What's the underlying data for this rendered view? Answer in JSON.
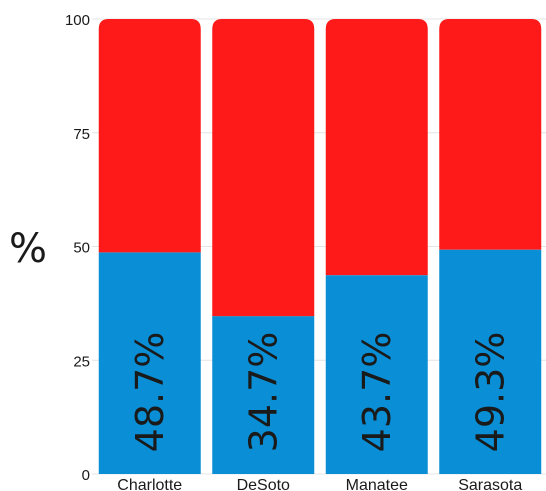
{
  "chart_data": {
    "type": "bar",
    "stacked": true,
    "percent": true,
    "categories": [
      "Charlotte",
      "DeSoto",
      "Manatee",
      "Sarasota"
    ],
    "series": [
      {
        "values": [
          48.7,
          34.7,
          43.7,
          49.3
        ],
        "color": "#0a8fd6"
      },
      {
        "values": [
          51.3,
          65.3,
          56.3,
          50.7
        ],
        "color": "#ff1a1a"
      }
    ],
    "data_labels": [
      "48.7%",
      "34.7%",
      "43.7%",
      "49.3%"
    ],
    "ylabel": "%",
    "ylim": [
      0,
      100
    ],
    "yticks": [
      "0",
      "25",
      "50",
      "75",
      "100"
    ],
    "grid": true,
    "legend": "none"
  }
}
